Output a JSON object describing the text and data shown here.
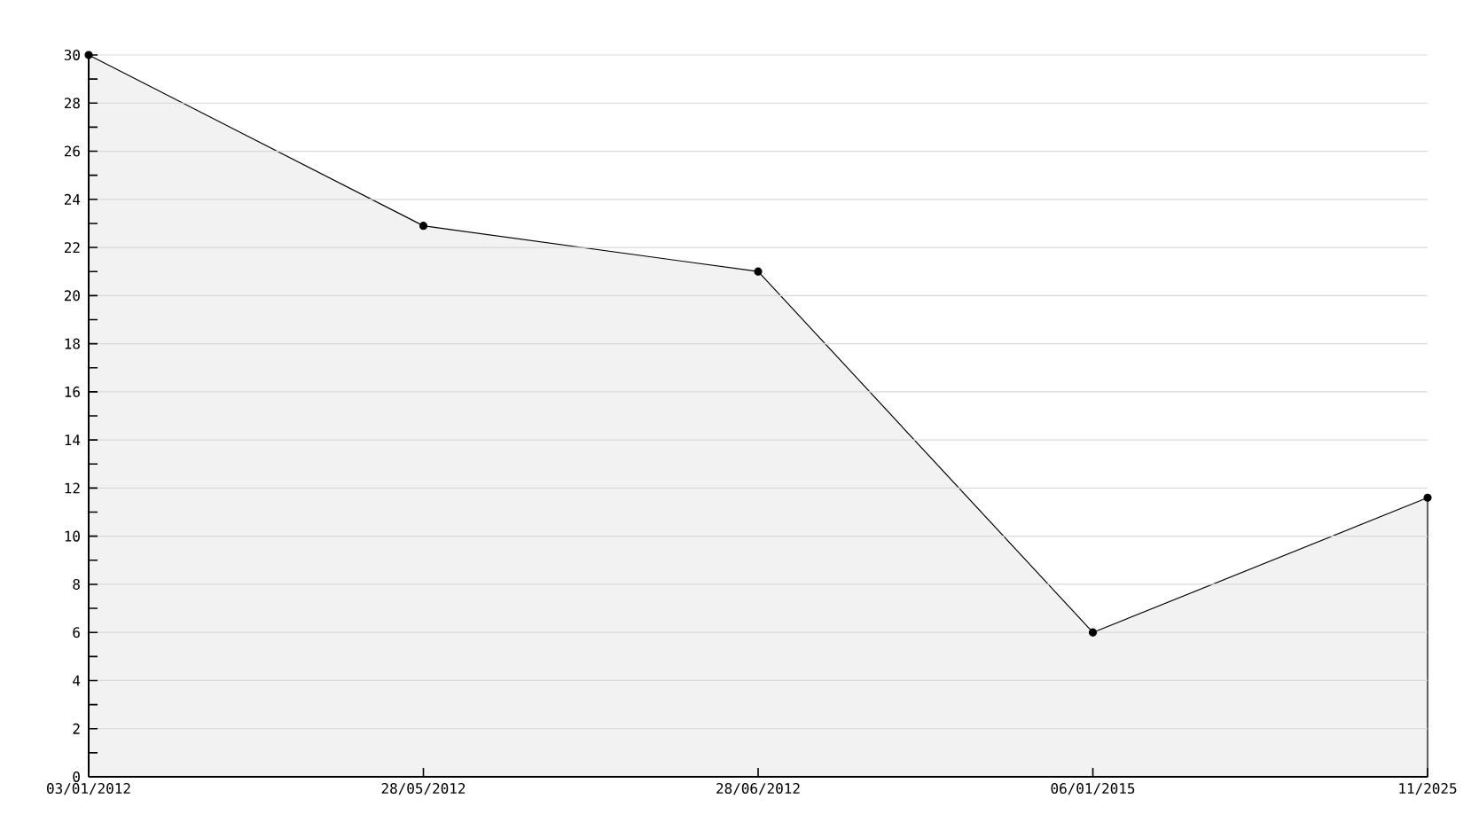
{
  "chart_data": {
    "type": "area",
    "categories": [
      "03/01/2012",
      "28/05/2012",
      "28/06/2012",
      "06/01/2015",
      "11/2025"
    ],
    "series": [
      {
        "color": "#f2f2f2",
        "values": [
          30,
          22.9,
          21,
          6,
          11.6
        ]
      }
    ],
    "ylim": [
      0,
      30
    ],
    "yticks": [
      0,
      {
        "value": 1,
        "label": null
      },
      2,
      {
        "value": 3,
        "label": null
      },
      4,
      {
        "value": 5,
        "label": null
      },
      6,
      {
        "value": 7,
        "label": null
      },
      8,
      {
        "value": 9,
        "label": null
      },
      10,
      {
        "value": 11,
        "label": null
      },
      12,
      {
        "value": 13,
        "label": null
      },
      14,
      {
        "value": 15,
        "label": null
      },
      16,
      {
        "value": 17,
        "label": null
      },
      18,
      {
        "value": 19,
        "label": null
      },
      20,
      {
        "value": 21,
        "label": null
      },
      22,
      {
        "value": 23,
        "label": null
      },
      24,
      {
        "value": 25,
        "label": null
      },
      26,
      {
        "value": 27,
        "label": null
      },
      28,
      {
        "value": 29,
        "label": null
      },
      30
    ],
    "grid": "y",
    "marker": "circle",
    "line_style": "solid"
  }
}
